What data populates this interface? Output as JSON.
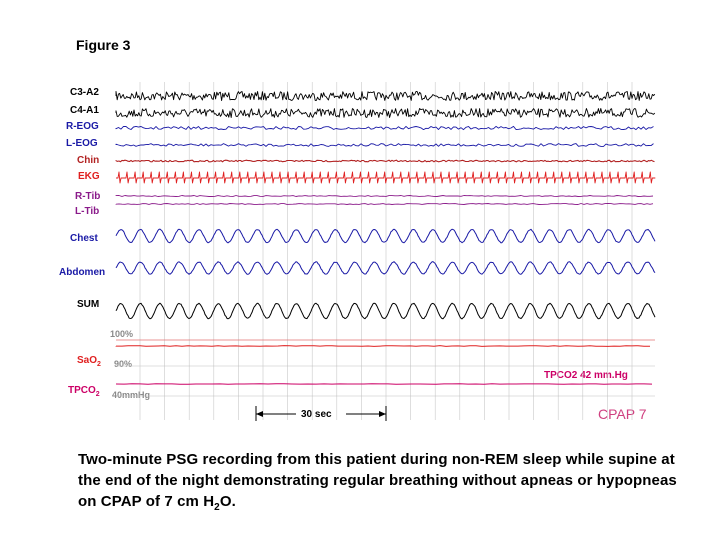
{
  "figure_title": "Figure 3",
  "channels": [
    {
      "id": "c3a2",
      "label": "C3-A2",
      "color": "#000000",
      "sub": ""
    },
    {
      "id": "c4a1",
      "label": "C4-A1",
      "color": "#000000",
      "sub": ""
    },
    {
      "id": "reog",
      "label": "R-EOG",
      "color": "#1a1aa6",
      "sub": ""
    },
    {
      "id": "leog",
      "label": "L-EOG",
      "color": "#1a1aa6",
      "sub": ""
    },
    {
      "id": "chin",
      "label": "Chin",
      "color": "#b22222",
      "sub": ""
    },
    {
      "id": "ekg",
      "label": "EKG",
      "color": "#e02020",
      "sub": ""
    },
    {
      "id": "rtib",
      "label": "R-Tib",
      "color": "#8a1a8a",
      "sub": ""
    },
    {
      "id": "ltib",
      "label": "L-Tib",
      "color": "#8a1a8a",
      "sub": ""
    },
    {
      "id": "chest",
      "label": "Chest",
      "color": "#1a1aa6",
      "sub": ""
    },
    {
      "id": "abdomen",
      "label": "Abdomen",
      "color": "#1a1aa6",
      "sub": ""
    },
    {
      "id": "sum",
      "label": "SUM",
      "color": "#000000",
      "sub": ""
    },
    {
      "id": "sao2",
      "label": "SaO",
      "color": "#e02020",
      "sub": "2"
    },
    {
      "id": "tpco2",
      "label": "TPCO",
      "color": "#cc0066",
      "sub": "2"
    }
  ],
  "sao2_scale": {
    "high": "100%",
    "low": "90%"
  },
  "tpco2_scale": "40mmHg",
  "tpco2_value": "TPCO2 42 mm.Hg",
  "time_scale": "30 sec",
  "cpap_label": "CPAP 7",
  "caption": {
    "main": "Two-minute PSG recording from this patient during non-REM sleep while supine at the end of the night demonstrating regular breathing without apneas or hypopneas on CPAP of 7 cm H",
    "sub": "2",
    "end": "O."
  }
}
